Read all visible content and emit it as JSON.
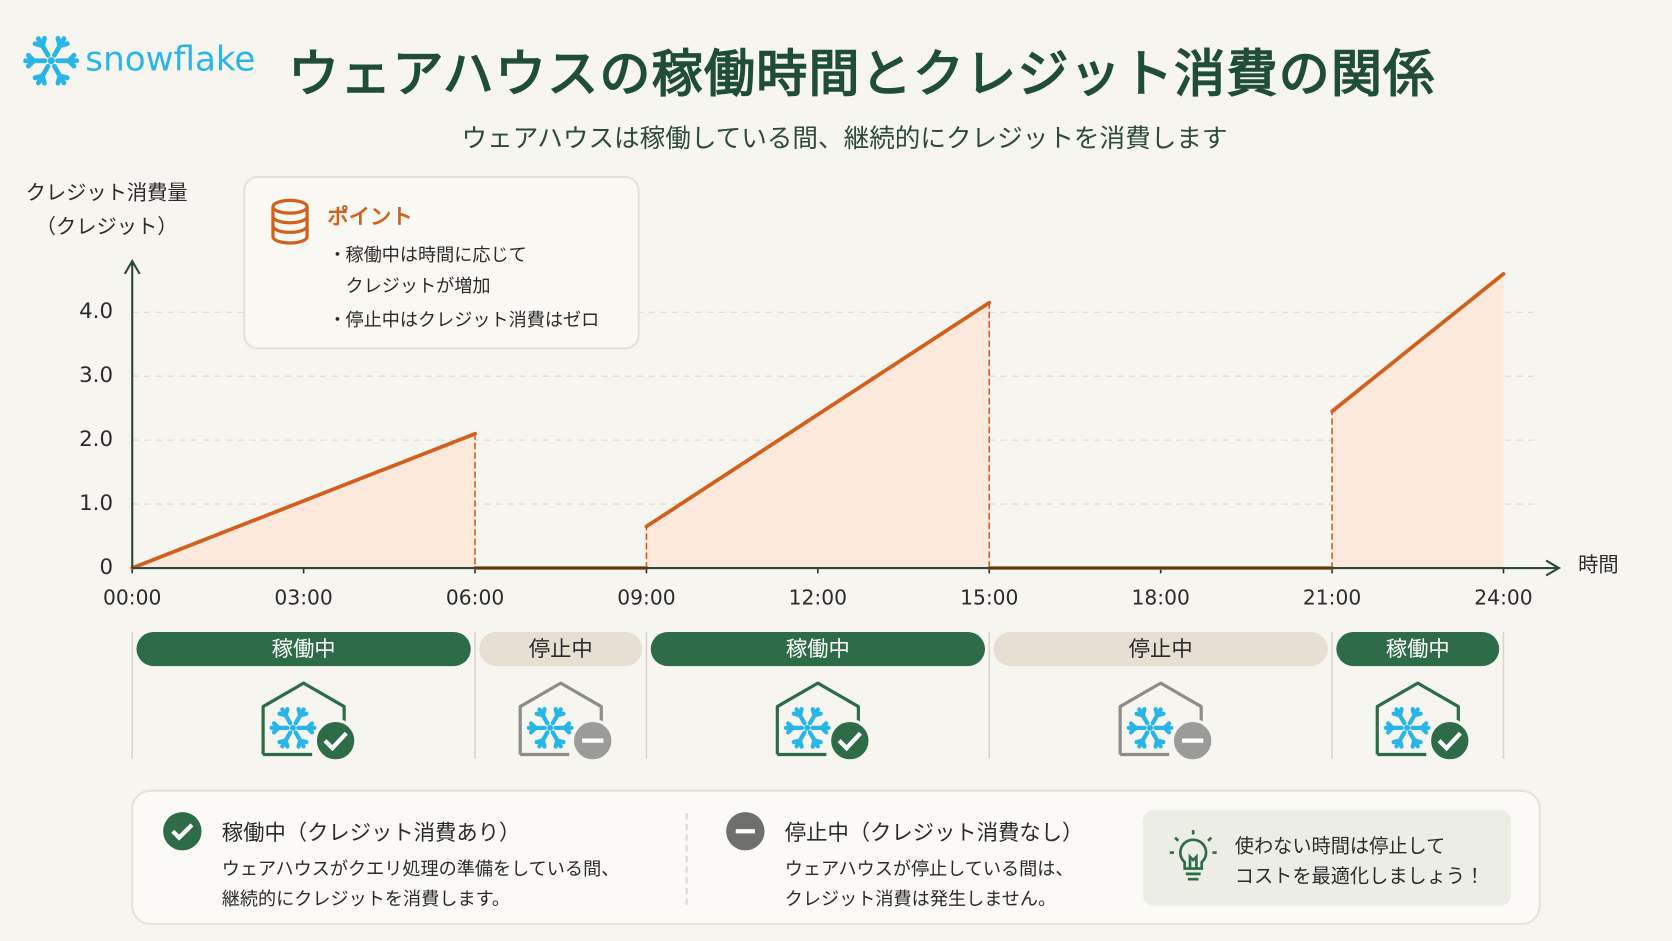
{
  "logo": "snowflake",
  "title": "ウェアハウスの稼働時間とクレジット消費の関係",
  "subtitle": "ウェアハウスは稼働している間、継続的にクレジットを消費します",
  "point": {
    "title": "ポイント",
    "bullets": [
      [
        "稼働中は時間に応じて",
        "クレジットが増加"
      ],
      [
        "停止中はクレジット消費はゼロ"
      ]
    ]
  },
  "chart_data": {
    "type": "line",
    "ylabel": [
      "クレジット消費量",
      "（クレジット）"
    ],
    "xlabel": "時間",
    "x": [
      0,
      6,
      6,
      9,
      9,
      15,
      15,
      21,
      21,
      24
    ],
    "values": [
      0,
      2.1,
      0,
      0,
      0.65,
      4.15,
      0,
      0,
      2.45,
      4.6
    ],
    "color": "#d35f1c",
    "area_color": "#fde8dc",
    "xlim": [
      0,
      24
    ],
    "xticks": [
      {
        "value": 0,
        "label": "00:00"
      },
      {
        "value": 3,
        "label": "03:00"
      },
      {
        "value": 6,
        "label": "06:00"
      },
      {
        "value": 9,
        "label": "09:00"
      },
      {
        "value": 12,
        "label": "12:00"
      },
      {
        "value": 15,
        "label": "15:00"
      },
      {
        "value": 18,
        "label": "18:00"
      },
      {
        "value": 21,
        "label": "21:00"
      },
      {
        "value": 24,
        "label": "24:00"
      }
    ],
    "ylim": [
      0,
      4.8
    ],
    "yticks": [
      0,
      {
        "value": 1,
        "label": "1.0"
      },
      {
        "value": 2,
        "label": "2.0"
      },
      {
        "value": 3,
        "label": "3.0"
      },
      {
        "value": 4,
        "label": "4.0"
      }
    ],
    "grid": true
  },
  "status": [
    {
      "label": "稼働中",
      "running": true
    },
    {
      "label": "停止中",
      "running": false
    },
    {
      "label": "稼働中",
      "running": true
    },
    {
      "label": "停止中",
      "running": false
    },
    {
      "label": "稼働中",
      "running": true
    }
  ],
  "legend": [
    {
      "title": "稼働中（クレジット消費あり）",
      "lines": [
        "ウェアハウスがクエリ処理の準備をしている間、",
        "継続的にクレジットを消費します。"
      ]
    },
    {
      "title": "停止中（クレジット消費なし）",
      "lines": [
        "ウェアハウスが停止している間は、",
        "クレジット消費は発生しません。"
      ]
    }
  ],
  "tip": [
    "使わない時間は停止して",
    "コストを最適化しましょう！"
  ]
}
